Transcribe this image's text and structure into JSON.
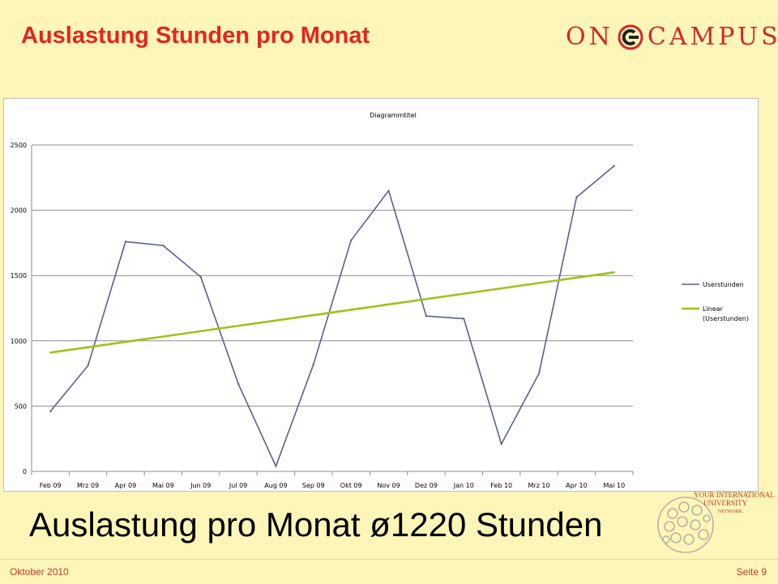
{
  "slide": {
    "title": "Auslastung Stunden pro Monat",
    "logo_left": "ON",
    "logo_right": "CAMPUS",
    "summary": "Auslastung pro Monat ø1220 Stunden",
    "seal_text": [
      "YOUR INTERNATIONAL",
      "UNIVERSITY",
      "NETWORK."
    ]
  },
  "footer": {
    "date": "Oktober 2010",
    "page": "Seite 9"
  },
  "colors": {
    "series_line": "#5b5f91",
    "trend_line": "#9bc31b",
    "title_red": "#e52421",
    "background": "#fdf6b8"
  },
  "chart_data": {
    "type": "line",
    "title": "Diagrammtitel",
    "categories": [
      "Feb 09",
      "Mrz 09",
      "Apr 09",
      "Mai 09",
      "Jun 09",
      "Jul 09",
      "Aug 09",
      "Sep 09",
      "Okt 09",
      "Nov 09",
      "Dez 09",
      "Jan 10",
      "Feb 10",
      "Mrz 10",
      "Apr 10",
      "Mai 10"
    ],
    "series": [
      {
        "name": "Userstunden",
        "values": [
          460,
          810,
          1760,
          1730,
          1490,
          670,
          40,
          820,
          1770,
          2150,
          1190,
          1170,
          210,
          750,
          2100,
          2340
        ]
      },
      {
        "name": "Linear (Userstunden)",
        "values": [
          910,
          951,
          992,
          1033,
          1074,
          1115,
          1156,
          1197,
          1238,
          1279,
          1320,
          1361,
          1402,
          1443,
          1484,
          1525
        ]
      }
    ],
    "yticks": [
      0,
      500,
      1000,
      1500,
      2000,
      2500
    ],
    "ylim": [
      0,
      2500
    ],
    "grid": true,
    "legend": "right"
  }
}
